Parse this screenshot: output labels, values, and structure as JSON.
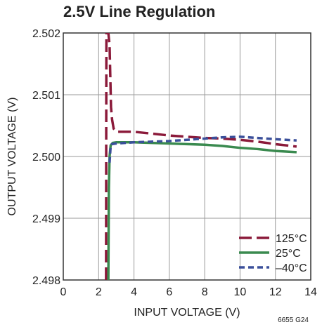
{
  "chart_data": {
    "type": "line",
    "title": "2.5V Line Regulation",
    "xlabel": "INPUT VOLTAGE (V)",
    "ylabel": "OUTPUT VOLTAGE (V)",
    "xlim": [
      0,
      14
    ],
    "ylim": [
      2.498,
      2.502
    ],
    "xticks": [
      "0",
      "2",
      "4",
      "6",
      "8",
      "10",
      "12",
      "14"
    ],
    "yticks": [
      "2.502",
      "2.501",
      "2.500",
      "2.499",
      "2.498"
    ],
    "grid": true,
    "legend_position": "bottom-right",
    "figure_id": "6655 G24",
    "series": [
      {
        "name": "125°C",
        "color": "#8b1a3a",
        "style": "long-dash",
        "points": [
          [
            2.42,
            2.498
          ],
          [
            2.43,
            2.5005
          ],
          [
            2.44,
            2.502
          ],
          [
            2.55,
            2.502
          ],
          [
            2.62,
            2.5018
          ],
          [
            2.66,
            2.5013
          ],
          [
            2.7,
            2.5008
          ],
          [
            2.76,
            2.5006
          ],
          [
            2.85,
            2.50045
          ],
          [
            3.0,
            2.5004
          ],
          [
            3.5,
            2.5004
          ],
          [
            4,
            2.5004
          ],
          [
            5,
            2.50037
          ],
          [
            6,
            2.50034
          ],
          [
            7,
            2.50032
          ],
          [
            8,
            2.5003
          ],
          [
            9,
            2.50029
          ],
          [
            10,
            2.50027
          ],
          [
            11,
            2.50024
          ],
          [
            12,
            2.5002
          ],
          [
            13.2,
            2.50016
          ]
        ]
      },
      {
        "name": "25°C",
        "color": "#3a8a4f",
        "style": "solid",
        "points": [
          [
            2.55,
            2.498
          ],
          [
            2.58,
            2.4995
          ],
          [
            2.62,
            2.5
          ],
          [
            2.68,
            2.50018
          ],
          [
            2.8,
            2.50022
          ],
          [
            3,
            2.50023
          ],
          [
            3.5,
            2.50023
          ],
          [
            4,
            2.50023
          ],
          [
            5,
            2.50022
          ],
          [
            6,
            2.50021
          ],
          [
            7,
            2.5002
          ],
          [
            8,
            2.50019
          ],
          [
            9,
            2.50017
          ],
          [
            10,
            2.50014
          ],
          [
            11,
            2.50012
          ],
          [
            12,
            2.50009
          ],
          [
            13.2,
            2.50007
          ]
        ]
      },
      {
        "name": "–40°C",
        "color": "#3a4f9a",
        "style": "short-dash",
        "points": [
          [
            2.62,
            2.4999
          ],
          [
            2.68,
            2.50017
          ],
          [
            2.75,
            2.5002
          ],
          [
            3,
            2.50021
          ],
          [
            3.5,
            2.50022
          ],
          [
            4,
            2.50023
          ],
          [
            5,
            2.50024
          ],
          [
            6,
            2.50025
          ],
          [
            7,
            2.50027
          ],
          [
            8,
            2.50029
          ],
          [
            9,
            2.50031
          ],
          [
            10,
            2.50032
          ],
          [
            11,
            2.5003
          ],
          [
            12,
            2.50028
          ],
          [
            13.2,
            2.50026
          ]
        ]
      }
    ]
  }
}
